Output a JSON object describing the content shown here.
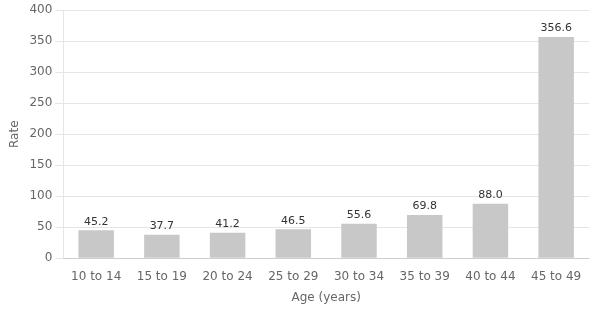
{
  "chart_data": {
    "type": "bar",
    "xlabel": "Age (years)",
    "ylabel": "Rate",
    "categories": [
      "10 to 14",
      "15 to 19",
      "20 to 24",
      "25 to 29",
      "30 to 34",
      "35 to 39",
      "40 to 44",
      "45 to 49"
    ],
    "values": [
      45.2,
      37.7,
      41.2,
      46.5,
      55.6,
      69.8,
      88.0,
      356.6
    ],
    "value_labels": [
      "45.2",
      "37.7",
      "41.2",
      "46.5",
      "55.6",
      "69.8",
      "88.0",
      "356.6"
    ],
    "data_labels": true,
    "color": "#c8c8c8",
    "ylim": [
      0,
      400
    ],
    "yticks": [
      0,
      50,
      100,
      150,
      200,
      250,
      300,
      350,
      400
    ],
    "grid": true
  }
}
